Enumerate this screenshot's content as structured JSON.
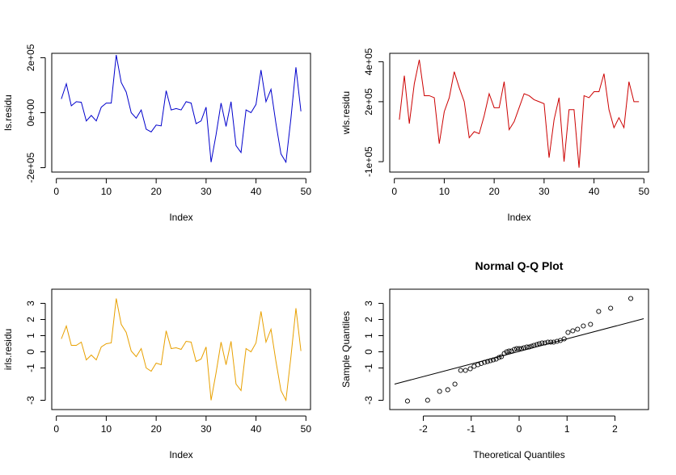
{
  "chart_data": [
    {
      "type": "line",
      "title": "",
      "xlabel": "Index",
      "ylabel": "ls.residu",
      "color": "#0000cc",
      "xlim": [
        1,
        49
      ],
      "ylim": [
        -200000,
        200000
      ],
      "x_ticks": [
        0,
        10,
        20,
        30,
        40,
        50
      ],
      "x_tick_labels": [
        "0",
        "10",
        "20",
        "30",
        "40",
        "50"
      ],
      "y_ticks": [
        -200000,
        0,
        200000
      ],
      "y_tick_labels": [
        "-2e+05",
        "0e+00",
        "2e+05"
      ],
      "x": [
        1,
        2,
        3,
        4,
        5,
        6,
        7,
        8,
        9,
        10,
        11,
        12,
        13,
        14,
        15,
        16,
        17,
        18,
        19,
        20,
        21,
        22,
        23,
        24,
        25,
        26,
        27,
        28,
        29,
        30,
        31,
        32,
        33,
        34,
        35,
        36,
        37,
        38,
        39,
        40,
        41,
        42,
        43,
        44,
        45,
        46,
        47,
        48,
        49
      ],
      "values": [
        50000,
        105000,
        25000,
        40000,
        38000,
        -30000,
        -10000,
        -30000,
        20000,
        35000,
        35000,
        210000,
        110000,
        75000,
        0,
        -20000,
        10000,
        -60000,
        -70000,
        -45000,
        -48000,
        80000,
        10000,
        15000,
        10000,
        40000,
        35000,
        -40000,
        -30000,
        20000,
        -180000,
        -80000,
        35000,
        -50000,
        40000,
        -120000,
        -145000,
        10000,
        0,
        30000,
        155000,
        40000,
        85000,
        -40000,
        -150000,
        -180000,
        -20000,
        165000,
        5000
      ]
    },
    {
      "type": "line",
      "title": "",
      "xlabel": "Index",
      "ylabel": "wls.residu",
      "color": "#cc0000",
      "xlim": [
        1,
        49
      ],
      "ylim": [
        -130000,
        420000
      ],
      "x_ticks": [
        0,
        10,
        20,
        30,
        40,
        50
      ],
      "x_tick_labels": [
        "0",
        "10",
        "20",
        "30",
        "40",
        "50"
      ],
      "y_ticks": [
        -100000,
        200000,
        400000
      ],
      "y_tick_labels": [
        "-1e+05",
        "2e+05",
        "4e+05"
      ],
      "x": [
        1,
        2,
        3,
        4,
        5,
        6,
        7,
        8,
        9,
        10,
        11,
        12,
        13,
        14,
        15,
        16,
        17,
        18,
        19,
        20,
        21,
        22,
        23,
        24,
        25,
        26,
        27,
        28,
        29,
        30,
        31,
        32,
        33,
        34,
        35,
        36,
        37,
        38,
        39,
        40,
        41,
        42,
        43,
        44,
        45,
        46,
        47,
        48,
        49
      ],
      "values": [
        110000,
        330000,
        90000,
        290000,
        410000,
        230000,
        230000,
        220000,
        -10000,
        150000,
        220000,
        350000,
        270000,
        200000,
        20000,
        50000,
        40000,
        130000,
        240000,
        170000,
        170000,
        300000,
        60000,
        100000,
        170000,
        240000,
        230000,
        210000,
        200000,
        190000,
        -80000,
        110000,
        220000,
        -100000,
        160000,
        160000,
        -130000,
        230000,
        220000,
        250000,
        250000,
        340000,
        160000,
        70000,
        120000,
        70000,
        300000,
        200000,
        200000
      ]
    },
    {
      "type": "line",
      "title": "",
      "xlabel": "Index",
      "ylabel": "irls.residu",
      "color": "#e8a000",
      "xlim": [
        1,
        49
      ],
      "ylim": [
        -3.3,
        3.6
      ],
      "x_ticks": [
        0,
        10,
        20,
        30,
        40,
        50
      ],
      "x_tick_labels": [
        "0",
        "10",
        "20",
        "30",
        "40",
        "50"
      ],
      "y_ticks": [
        -3,
        -1,
        0,
        1,
        2,
        3
      ],
      "y_tick_labels": [
        "-3",
        "-1",
        "0",
        "1",
        "2",
        "3"
      ],
      "x": [
        1,
        2,
        3,
        4,
        5,
        6,
        7,
        8,
        9,
        10,
        11,
        12,
        13,
        14,
        15,
        16,
        17,
        18,
        19,
        20,
        21,
        22,
        23,
        24,
        25,
        26,
        27,
        28,
        29,
        30,
        31,
        32,
        33,
        34,
        35,
        36,
        37,
        38,
        39,
        40,
        41,
        42,
        43,
        44,
        45,
        46,
        47,
        48,
        49
      ],
      "values": [
        0.8,
        1.6,
        0.4,
        0.4,
        0.6,
        -0.5,
        -0.2,
        -0.5,
        0.3,
        0.5,
        0.55,
        3.3,
        1.7,
        1.2,
        0.05,
        -0.3,
        0.2,
        -1.0,
        -1.2,
        -0.7,
        -0.8,
        1.3,
        0.2,
        0.25,
        0.15,
        0.65,
        0.6,
        -0.6,
        -0.45,
        0.3,
        -3.0,
        -1.3,
        0.6,
        -0.8,
        0.65,
        -2.0,
        -2.4,
        0.2,
        0.0,
        0.55,
        2.5,
        0.6,
        1.4,
        -0.6,
        -2.4,
        -3.0,
        -0.3,
        2.7,
        0.05
      ]
    },
    {
      "type": "scatter",
      "title": "Normal Q-Q Plot",
      "xlabel": "Theoretical Quantiles",
      "ylabel": "Sample Quantiles",
      "xlim": [
        -2.5,
        2.5
      ],
      "ylim": [
        -3.3,
        3.6
      ],
      "x_ticks": [
        -2,
        -1,
        0,
        1,
        2
      ],
      "x_tick_labels": [
        "-2",
        "-1",
        "0",
        "1",
        "2"
      ],
      "y_ticks": [
        -3,
        -1,
        0,
        1,
        2,
        3
      ],
      "y_tick_labels": [
        "-3",
        "-1",
        "0",
        "1",
        "2",
        "3"
      ],
      "points": [
        [
          -2.33,
          -3.05
        ],
        [
          -1.91,
          -3.0
        ],
        [
          -1.66,
          -2.45
        ],
        [
          -1.49,
          -2.35
        ],
        [
          -1.34,
          -2.0
        ],
        [
          -1.22,
          -1.15
        ],
        [
          -1.12,
          -1.15
        ],
        [
          -1.02,
          -1.05
        ],
        [
          -0.94,
          -0.9
        ],
        [
          -0.86,
          -0.8
        ],
        [
          -0.79,
          -0.72
        ],
        [
          -0.72,
          -0.65
        ],
        [
          -0.66,
          -0.6
        ],
        [
          -0.6,
          -0.55
        ],
        [
          -0.54,
          -0.5
        ],
        [
          -0.48,
          -0.45
        ],
        [
          -0.42,
          -0.35
        ],
        [
          -0.37,
          -0.3
        ],
        [
          -0.31,
          -0.1
        ],
        [
          -0.26,
          0.0
        ],
        [
          -0.21,
          0.05
        ],
        [
          -0.16,
          0.05
        ],
        [
          -0.1,
          0.15
        ],
        [
          -0.05,
          0.2
        ],
        [
          0.0,
          0.2
        ],
        [
          0.05,
          0.2
        ],
        [
          0.1,
          0.25
        ],
        [
          0.16,
          0.3
        ],
        [
          0.21,
          0.3
        ],
        [
          0.26,
          0.35
        ],
        [
          0.31,
          0.4
        ],
        [
          0.37,
          0.45
        ],
        [
          0.42,
          0.5
        ],
        [
          0.48,
          0.55
        ],
        [
          0.54,
          0.55
        ],
        [
          0.6,
          0.6
        ],
        [
          0.66,
          0.6
        ],
        [
          0.72,
          0.6
        ],
        [
          0.79,
          0.65
        ],
        [
          0.86,
          0.7
        ],
        [
          0.94,
          0.8
        ],
        [
          1.02,
          1.2
        ],
        [
          1.12,
          1.3
        ],
        [
          1.22,
          1.4
        ],
        [
          1.34,
          1.6
        ],
        [
          1.49,
          1.7
        ],
        [
          1.66,
          2.5
        ],
        [
          1.91,
          2.7
        ],
        [
          2.33,
          3.3
        ]
      ],
      "reference_line": [
        [
          -2.6,
          -2.0
        ],
        [
          2.6,
          2.05
        ]
      ]
    }
  ]
}
